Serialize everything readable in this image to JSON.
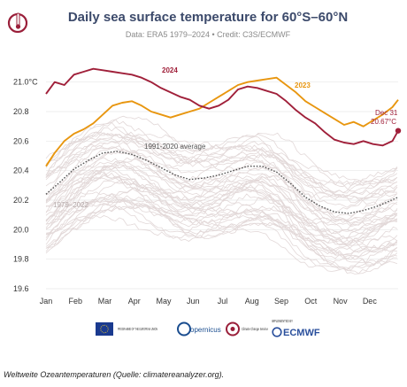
{
  "chart_data": {
    "type": "line",
    "title": "Daily sea surface temperature for 60°S–60°N",
    "subtitle": "Data: ERA5 1979–2024 • Credit: C3S/ECMWF",
    "xlabel": "",
    "ylabel": "",
    "categories": [
      "Jan",
      "Feb",
      "Mar",
      "Apr",
      "May",
      "Jun",
      "Jul",
      "Aug",
      "Sep",
      "Oct",
      "Nov",
      "Dec"
    ],
    "ylim": [
      19.6,
      21.1
    ],
    "y_ticks": [
      "19.6",
      "19.8",
      "20.0",
      "20.2",
      "20.4",
      "20.6",
      "20.8",
      "21.0°C"
    ],
    "grid": "horizontal",
    "series": [
      {
        "name": "2024",
        "color": "#a0203a",
        "x": [
          1,
          10,
          20,
          30,
          40,
          50,
          60,
          70,
          80,
          90,
          100,
          110,
          120,
          130,
          140,
          150,
          160,
          170,
          180,
          190,
          200,
          210,
          220,
          230,
          240,
          250,
          260,
          270,
          280,
          290,
          300,
          310,
          320,
          330,
          340,
          350,
          360,
          366
        ],
        "values": [
          20.92,
          21.0,
          20.98,
          21.05,
          21.07,
          21.09,
          21.08,
          21.07,
          21.06,
          21.05,
          21.03,
          21.0,
          20.96,
          20.93,
          20.9,
          20.88,
          20.84,
          20.82,
          20.84,
          20.88,
          20.95,
          20.97,
          20.96,
          20.94,
          20.92,
          20.87,
          20.81,
          20.76,
          20.72,
          20.66,
          20.61,
          20.59,
          20.58,
          20.6,
          20.58,
          20.57,
          20.6,
          20.67
        ]
      },
      {
        "name": "2023",
        "color": "#e8960f",
        "x": [
          1,
          10,
          20,
          30,
          40,
          50,
          60,
          70,
          80,
          90,
          100,
          110,
          120,
          130,
          140,
          150,
          160,
          170,
          180,
          190,
          200,
          210,
          220,
          230,
          240,
          250,
          260,
          270,
          280,
          290,
          300,
          310,
          320,
          330,
          340,
          350,
          360,
          366
        ],
        "values": [
          20.43,
          20.52,
          20.6,
          20.65,
          20.68,
          20.72,
          20.78,
          20.84,
          20.86,
          20.87,
          20.84,
          20.8,
          20.78,
          20.76,
          20.78,
          20.8,
          20.82,
          20.86,
          20.9,
          20.94,
          20.98,
          21.0,
          21.01,
          21.02,
          21.03,
          20.98,
          20.93,
          20.87,
          20.83,
          20.79,
          20.75,
          20.71,
          20.73,
          20.7,
          20.74,
          20.78,
          20.83,
          20.88
        ]
      },
      {
        "name": "1991-2020 average",
        "color": "#555555",
        "x": [
          1,
          15,
          30,
          45,
          60,
          75,
          90,
          105,
          120,
          135,
          150,
          165,
          180,
          195,
          210,
          225,
          240,
          255,
          270,
          285,
          300,
          315,
          330,
          345,
          366
        ],
        "values": [
          20.24,
          20.32,
          20.41,
          20.47,
          20.52,
          20.53,
          20.51,
          20.47,
          20.42,
          20.37,
          20.34,
          20.35,
          20.37,
          20.4,
          20.43,
          20.43,
          20.39,
          20.31,
          20.22,
          20.16,
          20.12,
          20.11,
          20.13,
          20.16,
          20.22
        ]
      }
    ],
    "background_series": {
      "name": "1979–2022",
      "color": "#e2d8d8",
      "count": 44
    },
    "annotations": {
      "label_2024": "2024",
      "label_2023": "2023",
      "label_average": "1991-2020 average",
      "label_background": "1979–2022",
      "endpoint_date": "Dec 31",
      "endpoint_value": "20.67°C"
    }
  },
  "logos": {
    "eu": "PROGRAMME OF THE EUROPEAN UNION",
    "copernicus": "opernicus",
    "c3s": "Climate Change Service",
    "ecmwf": "ECMWF",
    "implemented_by": "IMPLEMENTED BY"
  },
  "caption": "Weltweite Ozeantemperaturen (Quelle: climatereanalyzer.org)."
}
